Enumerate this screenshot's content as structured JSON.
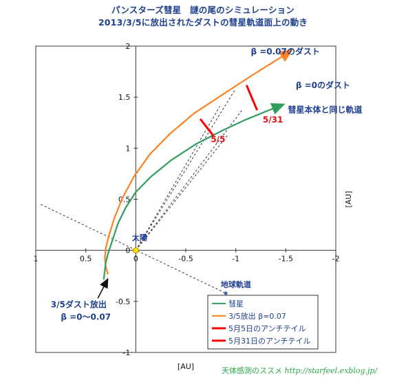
{
  "chart_data": {
    "type": "line",
    "title": "パンスターズ彗星　謎の尾のシミュレーション",
    "subtitle": "2013/3/5に放出されたダストの彗星軌道面上の動き",
    "xlabel": "[AU]",
    "ylabel": "[AU]",
    "xlim": [
      1,
      -2
    ],
    "ylim": [
      -1,
      2
    ],
    "x_reversed": true,
    "grid": false,
    "x_ticks": [
      "1",
      "0.5",
      "0",
      "-0.5",
      "-1",
      "-1.5",
      "-2"
    ],
    "x_tick_values": [
      1,
      0.5,
      0,
      -0.5,
      -1,
      -1.5,
      -2
    ],
    "y_ticks": [
      "2",
      "1.5",
      "1",
      "0.5",
      "0",
      "-0.5",
      "-1"
    ],
    "y_tick_values": [
      2,
      1.5,
      1,
      0.5,
      0,
      -0.5,
      -1
    ],
    "series": [
      {
        "name": "彗星",
        "color": "#2e9e5e",
        "points": [
          [
            0.32,
            -0.28
          ],
          [
            0.31,
            -0.2
          ],
          [
            0.3,
            -0.12
          ],
          [
            0.28,
            -0.04
          ],
          [
            0.24,
            0.08
          ],
          [
            0.18,
            0.26
          ],
          [
            0.1,
            0.42
          ],
          [
            0.0,
            0.57
          ],
          [
            -0.15,
            0.72
          ],
          [
            -0.35,
            0.88
          ],
          [
            -0.6,
            1.04
          ],
          [
            -0.88,
            1.18
          ],
          [
            -1.1,
            1.28
          ],
          [
            -1.3,
            1.36
          ],
          [
            -1.48,
            1.43
          ]
        ]
      },
      {
        "name": "3/5放出 β=0.07",
        "color": "#ff8020",
        "points": [
          [
            0.28,
            -0.23
          ],
          [
            0.3,
            -0.16
          ],
          [
            0.31,
            -0.08
          ],
          [
            0.3,
            0.02
          ],
          [
            0.27,
            0.14
          ],
          [
            0.22,
            0.3
          ],
          [
            0.14,
            0.5
          ],
          [
            0.02,
            0.72
          ],
          [
            -0.14,
            0.94
          ],
          [
            -0.34,
            1.14
          ],
          [
            -0.58,
            1.34
          ],
          [
            -0.86,
            1.52
          ],
          [
            -1.14,
            1.7
          ],
          [
            -1.4,
            1.86
          ],
          [
            -1.56,
            1.96
          ]
        ]
      },
      {
        "name": "5月5日のアンチテイル",
        "color": "#ff0000",
        "points": [
          [
            -0.65,
            1.28
          ],
          [
            -0.77,
            1.13
          ]
        ]
      },
      {
        "name": "5月31日のアンチテイル",
        "color": "#ff0000",
        "points": [
          [
            -1.11,
            1.61
          ],
          [
            -1.21,
            1.38
          ]
        ]
      }
    ],
    "earth_orbit": [
      [
        0.95,
        0.45
      ],
      [
        -0.9,
        -0.42
      ]
    ],
    "sun_lines": [
      [
        [
          0,
          0
        ],
        [
          -0.99,
          1.57
        ]
      ],
      [
        [
          0,
          0
        ],
        [
          -1.06,
          1.37
        ]
      ],
      [
        [
          0,
          0
        ],
        [
          -0.84,
          1.41
        ]
      ],
      [
        [
          0,
          0
        ],
        [
          -0.92,
          1.13
        ]
      ]
    ],
    "sun_point": [
      0,
      0
    ],
    "annotations": [
      {
        "text": "β =0.07のダスト",
        "x": -1.15,
        "y": 1.92
      },
      {
        "text": "β =0のダスト",
        "x": -1.6,
        "y": 1.59
      },
      {
        "text": "彗星本体と同じ軌道",
        "x": -1.48,
        "y": 1.43
      },
      {
        "text": "5/31",
        "x": -1.27,
        "y": 1.28
      },
      {
        "text": "5/5",
        "x": -0.75,
        "y": 1.06
      },
      {
        "text": "太陽",
        "x": -0.1,
        "y": 0.06
      },
      {
        "text": "地球軌道",
        "x": -0.85,
        "y": -0.36
      },
      {
        "text": "3/5ダスト放出",
        "x": 0.85,
        "y": -0.56
      },
      {
        "text": "β =0～0.07",
        "x": 0.75,
        "y": -0.68
      }
    ]
  },
  "credit": {
    "label": "天体感測のススメ",
    "url": "http://starfeel.exblog.jp/"
  }
}
